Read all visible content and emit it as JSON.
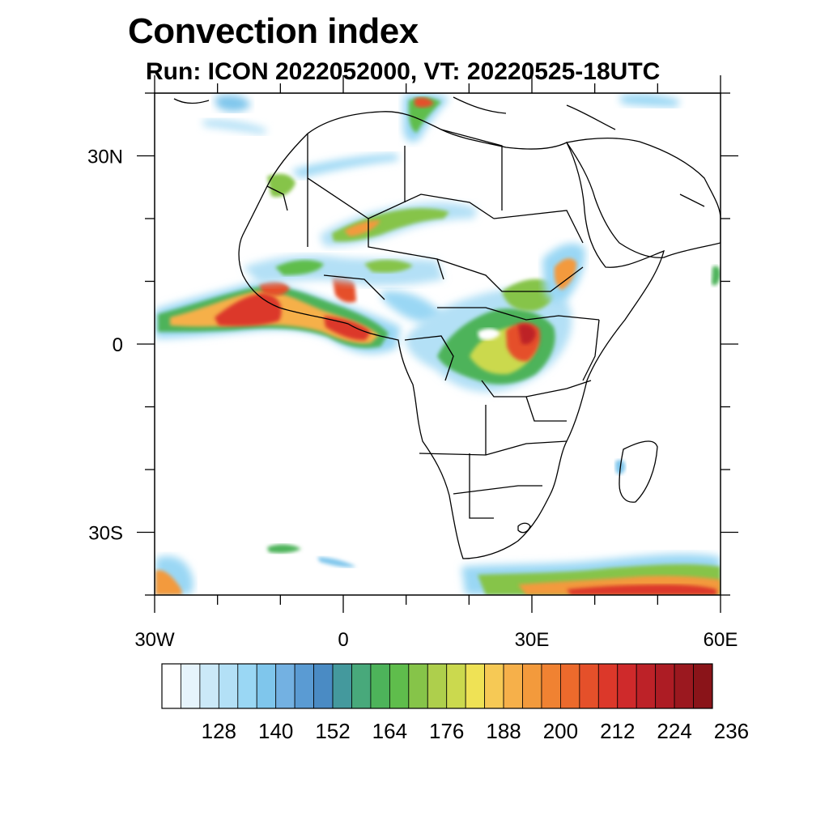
{
  "title": "Convection index",
  "subtitle": "Run: ICON 2022052000,  VT: 20220525-18UTC",
  "map": {
    "region": "Africa",
    "lon_range": [
      -30,
      60
    ],
    "lat_range": [
      -40,
      40
    ],
    "lat_ticks": [
      {
        "value": 30,
        "label": "30N"
      },
      {
        "value": 0,
        "label": "0"
      },
      {
        "value": -30,
        "label": "30S"
      }
    ],
    "lon_ticks": [
      {
        "value": -30,
        "label": "30W"
      },
      {
        "value": 0,
        "label": "0"
      },
      {
        "value": 30,
        "label": "30E"
      },
      {
        "value": 60,
        "label": "60E"
      }
    ]
  },
  "colorbar": {
    "colors": [
      "#ffffff",
      "#e6f4fc",
      "#cbe9f8",
      "#b3e0f6",
      "#9ad7f4",
      "#7fc6ec",
      "#73b1e2",
      "#5a9bd3",
      "#4a8bc4",
      "#44999d",
      "#48a97b",
      "#4db35a",
      "#5fbd4c",
      "#86c449",
      "#aecf4c",
      "#cbd94e",
      "#efe255",
      "#f6c955",
      "#f6b04a",
      "#f39a3c",
      "#f08232",
      "#ec6a2c",
      "#e5502a",
      "#dc382a",
      "#cf2a2b",
      "#bd2228",
      "#ad1c24",
      "#9b181f",
      "#8a1419"
    ],
    "labels": [
      "128",
      "140",
      "152",
      "164",
      "176",
      "188",
      "200",
      "212",
      "224",
      "236"
    ]
  },
  "convection_areas": [
    {
      "name": "guinea-coast-band",
      "lon": -14,
      "lat": 3,
      "intensity": "high"
    },
    {
      "name": "central-africa",
      "lon": 27,
      "lat": 2,
      "intensity": "high"
    },
    {
      "name": "sahel-band",
      "lon": 0,
      "lat": 19,
      "intensity": "medium"
    },
    {
      "name": "south-ocean-band",
      "lon": 38,
      "lat": -38,
      "intensity": "high"
    }
  ]
}
